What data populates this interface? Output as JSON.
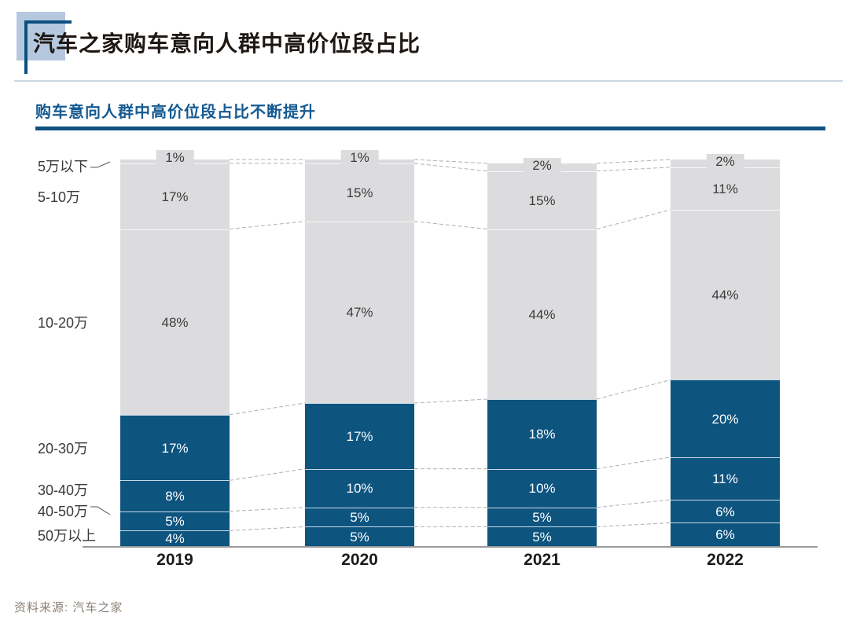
{
  "header": {
    "title": "汽车之家购车意向人群中高价位段占比",
    "subtitle": "购车意向人群中高价位段占比不断提升"
  },
  "source": {
    "label": "资料来源: 汽车之家"
  },
  "colors": {
    "high_price_blue": "#0d547f",
    "low_price_gray": "#dcdcde",
    "subtitle_blue": "#155a92",
    "underline_blue": "#0d5181",
    "deco_light_blue": "#b5c8df",
    "connector_gray": "#b0b0b0",
    "axis_gray": "#999999",
    "source_gray": "#8a8076"
  },
  "chart_data": {
    "type": "bar",
    "stacked": true,
    "orientation": "vertical",
    "categories": [
      "2019",
      "2020",
      "2021",
      "2022"
    ],
    "series": [
      {
        "name": "5万以下",
        "values": [
          1,
          1,
          2,
          2
        ],
        "color": "#dcdcde",
        "label_color": "#3c3c3c"
      },
      {
        "name": "5-10万",
        "values": [
          17,
          15,
          15,
          11
        ],
        "color": "#dcdcde",
        "label_color": "#3c3c3c"
      },
      {
        "name": "10-20万",
        "values": [
          48,
          47,
          44,
          44
        ],
        "color": "#dcdcde",
        "label_color": "#3c3c3c"
      },
      {
        "name": "20-30万",
        "values": [
          17,
          17,
          18,
          20
        ],
        "color": "#0d547f",
        "label_color": "#ffffff"
      },
      {
        "name": "30-40万",
        "values": [
          8,
          10,
          10,
          11
        ],
        "color": "#0d547f",
        "label_color": "#ffffff"
      },
      {
        "name": "40-50万",
        "values": [
          5,
          5,
          5,
          6
        ],
        "color": "#0d547f",
        "label_color": "#ffffff"
      },
      {
        "name": "50万以上",
        "values": [
          4,
          5,
          5,
          6
        ],
        "color": "#0d547f",
        "label_color": "#ffffff"
      }
    ],
    "value_suffix": "%",
    "ylim": [
      0,
      100
    ],
    "grid": false,
    "legend": "none",
    "series_labels_position": "left",
    "connector_lines": "dashed"
  }
}
